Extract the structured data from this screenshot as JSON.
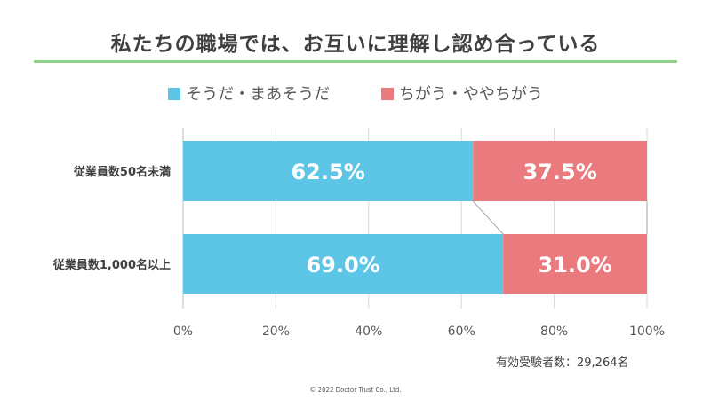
{
  "title": "私たちの職場では、お互いに理解し認め合っている",
  "note": "有効受験者数：29,264名",
  "copyright": "© 2022 Doctor Trust Co., Ltd.",
  "colors": {
    "series1": "#5dc5e6",
    "series2": "#ea7a7e",
    "rule": "#92d38a"
  },
  "chart_data": {
    "type": "bar",
    "orientation": "horizontal",
    "stacked": true,
    "categories": [
      "従業員数50名未満",
      "従業員数1,000名以上"
    ],
    "series": [
      {
        "name": "そうだ・まあそうだ",
        "values": [
          62.5,
          69.0
        ],
        "labels": [
          "62.5%",
          "69.0%"
        ]
      },
      {
        "name": "ちがう・ややちがう",
        "values": [
          37.5,
          31.0
        ],
        "labels": [
          "37.5%",
          "31.0%"
        ]
      }
    ],
    "xlim": [
      0,
      100
    ],
    "xticks": [
      "0%",
      "20%",
      "40%",
      "60%",
      "80%",
      "100%"
    ],
    "grid": true,
    "legend": "top"
  }
}
